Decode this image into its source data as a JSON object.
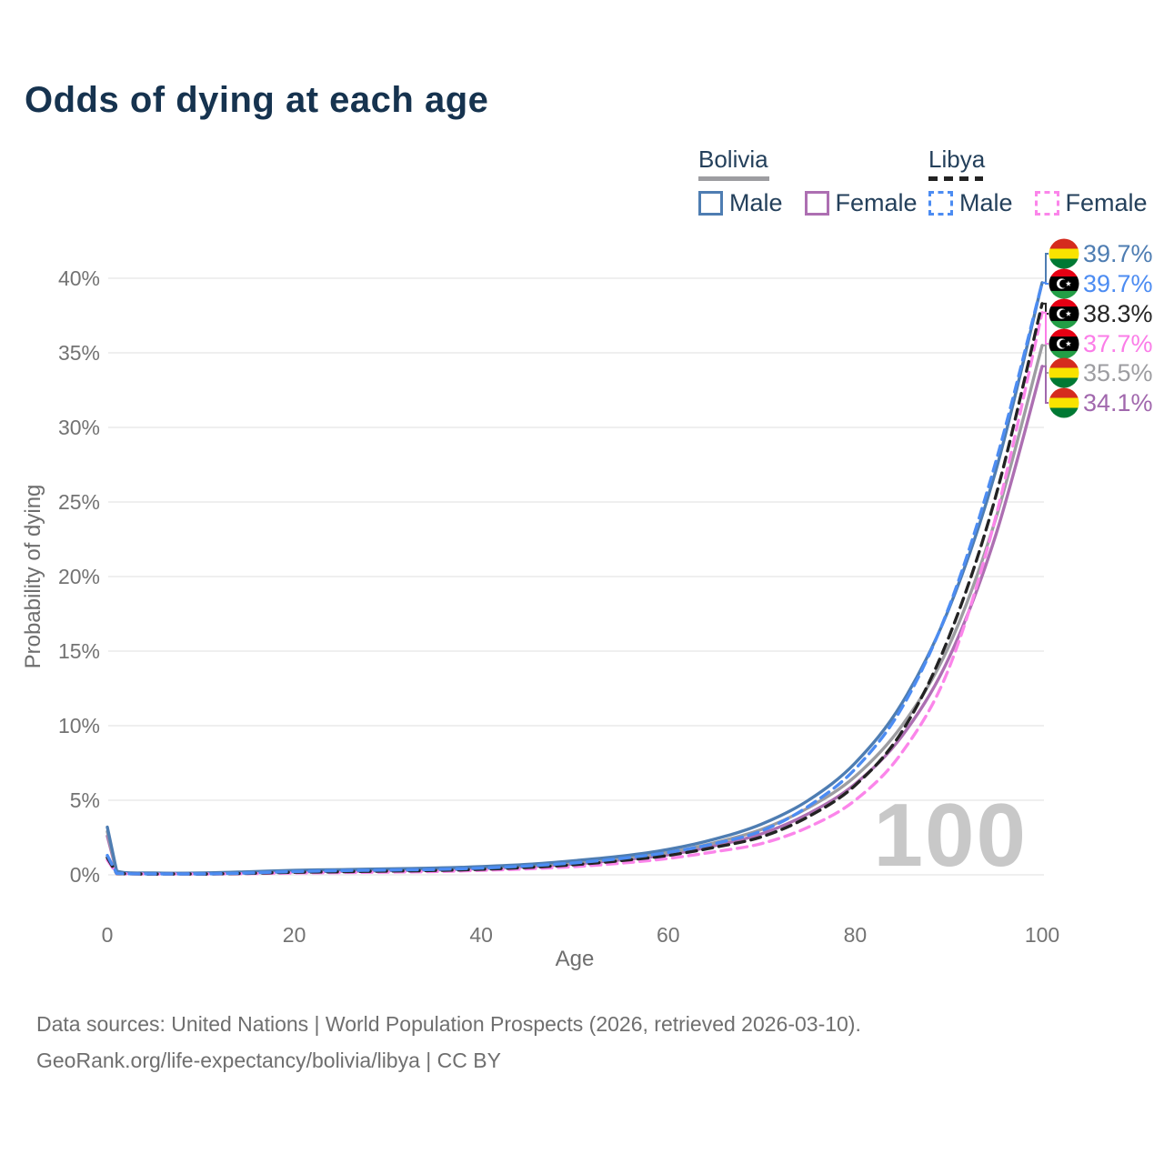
{
  "title": "Odds of dying at each age",
  "legend": {
    "groups": [
      {
        "name": "Bolivia",
        "line_style": "solid",
        "line_color": "#9d9da1",
        "items": [
          {
            "label": "Male",
            "color": "#4e7db2",
            "style": "solid"
          },
          {
            "label": "Female",
            "color": "#ad6fb2",
            "style": "solid"
          }
        ]
      },
      {
        "name": "Libya",
        "line_style": "dashed",
        "line_color": "#232323",
        "items": [
          {
            "label": "Male",
            "color": "#4c8cf2",
            "style": "dashed"
          },
          {
            "label": "Female",
            "color": "#fb85ea",
            "style": "dashed"
          }
        ]
      }
    ]
  },
  "chart_data": {
    "type": "line",
    "title": "Odds of dying at each age",
    "xlabel": "Age",
    "ylabel": "Probability of dying",
    "xlim": [
      0,
      100
    ],
    "ylim": [
      0,
      40
    ],
    "grid": "horizontal",
    "legend_position": "top-right",
    "x_ticks": [
      0,
      20,
      40,
      60,
      80,
      100
    ],
    "x_tick_labels": [
      "0",
      "20",
      "40",
      "60",
      "80",
      "100"
    ],
    "y_ticks": [
      0,
      5,
      10,
      15,
      20,
      25,
      30,
      35,
      40
    ],
    "y_tick_labels": [
      "0%",
      "5%",
      "10%",
      "15%",
      "20%",
      "25%",
      "30%",
      "35%",
      "40%"
    ],
    "age_watermark": "100",
    "x": [
      0,
      1,
      5,
      10,
      15,
      20,
      25,
      30,
      35,
      40,
      45,
      50,
      55,
      60,
      65,
      70,
      75,
      80,
      85,
      90,
      95,
      100
    ],
    "series": [
      {
        "name": "Bolivia Male",
        "country": "Bolivia",
        "sex": "Male",
        "flag": "bolivia",
        "line_color": "#4e7db2",
        "label_color": "#4e7db2",
        "line_style": "solid",
        "end_label": "39.7%",
        "values": [
          3.2,
          0.25,
          0.12,
          0.12,
          0.2,
          0.3,
          0.35,
          0.4,
          0.45,
          0.55,
          0.7,
          0.95,
          1.25,
          1.7,
          2.4,
          3.4,
          5.0,
          7.5,
          11.5,
          17.8,
          27.0,
          39.7
        ]
      },
      {
        "name": "Libya Male",
        "country": "Libya",
        "sex": "Male",
        "flag": "libya",
        "line_color": "#4c8cf2",
        "label_color": "#4c8cf2",
        "line_style": "dashed",
        "end_label": "39.7%",
        "values": [
          1.3,
          0.1,
          0.06,
          0.06,
          0.12,
          0.22,
          0.28,
          0.32,
          0.36,
          0.45,
          0.6,
          0.8,
          1.1,
          1.5,
          2.1,
          2.95,
          4.6,
          7.1,
          11.2,
          17.9,
          27.6,
          39.7
        ]
      },
      {
        "name": "Libya (both sexes)",
        "country": "Libya",
        "sex": "Both",
        "flag": "libya",
        "line_color": "#232323",
        "label_color": "#262626",
        "line_style": "dashed",
        "end_label": "38.3%",
        "values": [
          1.15,
          0.09,
          0.05,
          0.05,
          0.1,
          0.17,
          0.21,
          0.25,
          0.29,
          0.37,
          0.5,
          0.68,
          0.95,
          1.3,
          1.85,
          2.55,
          3.9,
          6.0,
          9.6,
          15.9,
          25.3,
          38.3
        ]
      },
      {
        "name": "Libya Female",
        "country": "Libya",
        "sex": "Female",
        "flag": "libya",
        "line_color": "#fb85ea",
        "label_color": "#fb7de8",
        "line_style": "dashed",
        "end_label": "37.7%",
        "values": [
          1.0,
          0.08,
          0.05,
          0.05,
          0.08,
          0.12,
          0.15,
          0.18,
          0.22,
          0.3,
          0.4,
          0.55,
          0.78,
          1.1,
          1.55,
          2.1,
          3.2,
          5.0,
          8.2,
          13.8,
          23.9,
          37.7
        ]
      },
      {
        "name": "Bolivia (both sexes)",
        "country": "Bolivia",
        "sex": "Both",
        "flag": "bolivia",
        "line_color": "#9d9da1",
        "label_color": "#9d9da1",
        "line_style": "solid",
        "end_label": "35.5%",
        "values": [
          2.9,
          0.22,
          0.11,
          0.11,
          0.17,
          0.25,
          0.3,
          0.34,
          0.39,
          0.48,
          0.62,
          0.83,
          1.12,
          1.5,
          2.15,
          3.05,
          4.5,
          6.6,
          10.0,
          15.3,
          23.8,
          35.5
        ]
      },
      {
        "name": "Bolivia Female",
        "country": "Bolivia",
        "sex": "Female",
        "flag": "bolivia",
        "line_color": "#ad6fb2",
        "label_color": "#a168ad",
        "line_style": "solid",
        "end_label": "34.1%",
        "values": [
          2.6,
          0.2,
          0.1,
          0.1,
          0.14,
          0.2,
          0.24,
          0.28,
          0.33,
          0.42,
          0.55,
          0.73,
          1.0,
          1.35,
          1.95,
          2.75,
          4.1,
          6.1,
          9.3,
          14.5,
          22.7,
          34.1
        ]
      }
    ],
    "flag_colors": {
      "bolivia": [
        "#d52b1e",
        "#f9e300",
        "#007934"
      ],
      "libya": [
        "#e70013",
        "#000000",
        "#239e46"
      ]
    }
  },
  "footer": {
    "line1": "Data sources: United Nations | World Population Prospects (2026, retrieved 2026-03-10).",
    "line2": "GeoRank.org/life-expectancy/bolivia/libya | CC BY"
  }
}
